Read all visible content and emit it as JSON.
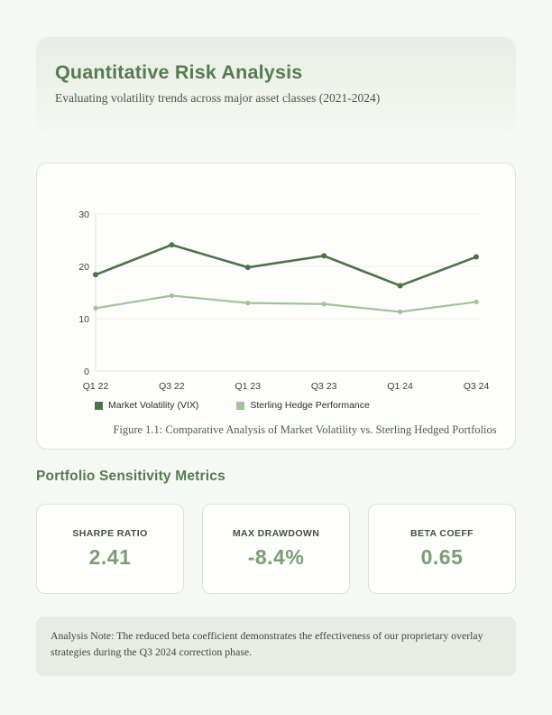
{
  "header": {
    "title": "Quantitative Risk Analysis",
    "subtitle": "Evaluating volatility trends across major asset classes (2021-2024)"
  },
  "chart_card": {
    "caption": "Figure 1.1: Comparative Analysis of Market Volatility vs. Sterling Hedged Portfolios"
  },
  "chart_data": {
    "type": "line",
    "categories": [
      "Q1 22",
      "Q3 22",
      "Q1 23",
      "Q3 23",
      "Q1 24",
      "Q3 24"
    ],
    "series": [
      {
        "name": "Market Volatility (VIX)",
        "color": "#4d724b",
        "values": [
          18.4,
          24.1,
          19.8,
          22.0,
          16.3,
          21.8
        ]
      },
      {
        "name": "Sterling Hedge Performance",
        "color": "#a4c29a",
        "values": [
          12.0,
          14.4,
          13.0,
          12.8,
          11.3,
          13.2
        ]
      }
    ],
    "ylim": [
      0,
      30
    ],
    "yticks": [
      0,
      10,
      20,
      30
    ],
    "grid": true,
    "legend_position": "bottom"
  },
  "metrics": {
    "heading": "Portfolio Sensitivity Metrics",
    "cards": [
      {
        "label": "SHARPE RATIO",
        "value": "2.41"
      },
      {
        "label": "MAX DRAWDOWN",
        "value": "-8.4%"
      },
      {
        "label": "BETA COEFF",
        "value": "0.65"
      }
    ]
  },
  "note": {
    "text": "Analysis Note: The reduced beta coefficient demonstrates the effectiveness of our proprietary overlay strategies during the Q3 2024 correction phase."
  },
  "colors": {
    "accent_green": "#567a52",
    "line_dark": "#4d724b",
    "line_light": "#a4c29a",
    "metric_value_green": "#7c9d75",
    "note_background": "#e9ece4",
    "page_background": "#f6f8f3"
  }
}
